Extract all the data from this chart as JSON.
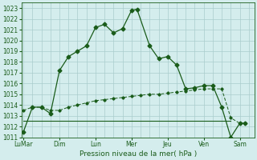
{
  "xlabel": "Pression niveau de la mer( hPa )",
  "ylim": [
    1011,
    1023.5
  ],
  "yticks": [
    1011,
    1012,
    1013,
    1014,
    1015,
    1016,
    1017,
    1018,
    1019,
    1020,
    1021,
    1022,
    1023
  ],
  "bg_color": "#d4eded",
  "grid_color": "#aacccc",
  "line_color": "#1a5c1a",
  "xtick_labels": [
    "LuMar",
    "Dim",
    "Lun",
    "Mer",
    "Jeu",
    "Ven",
    "Sam"
  ],
  "xtick_positions": [
    0,
    2,
    4,
    6,
    8,
    10,
    12
  ],
  "xlim": [
    -0.1,
    12.8
  ],
  "curve1_x": [
    0.0,
    0.5,
    1.0,
    1.5,
    2.0,
    2.5,
    3.0,
    3.5,
    4.0,
    4.5,
    5.0,
    5.5,
    6.0,
    6.3,
    7.0,
    7.5,
    8.0,
    8.5,
    9.0,
    9.5,
    10.0,
    10.5,
    11.0,
    11.5,
    12.0,
    12.3
  ],
  "curve1_y": [
    1011.5,
    1013.8,
    1013.8,
    1013.2,
    1017.2,
    1018.5,
    1019.0,
    1019.5,
    1021.2,
    1021.5,
    1020.7,
    1021.1,
    1022.8,
    1022.9,
    1019.5,
    1018.3,
    1018.5,
    1017.7,
    1015.5,
    1015.6,
    1015.8,
    1015.8,
    1013.8,
    1011.0,
    1012.3,
    1012.3
  ],
  "curve2_x": [
    0.0,
    0.5,
    1.0,
    1.5,
    2.0,
    2.5,
    3.0,
    3.5,
    4.0,
    4.5,
    5.0,
    5.5,
    6.0,
    6.5,
    7.0,
    7.5,
    8.0,
    8.5,
    9.0,
    9.5,
    10.0,
    10.5,
    11.0,
    11.5,
    12.0,
    12.3
  ],
  "curve2_y": [
    1013.5,
    1013.8,
    1013.8,
    1013.5,
    1013.5,
    1013.8,
    1014.0,
    1014.2,
    1014.4,
    1014.5,
    1014.6,
    1014.7,
    1014.8,
    1014.9,
    1015.0,
    1015.0,
    1015.1,
    1015.2,
    1015.3,
    1015.4,
    1015.5,
    1015.5,
    1015.5,
    1012.8,
    1012.3,
    1012.3
  ],
  "curve3_x": [
    0.0,
    11.5
  ],
  "curve3_y": [
    1012.5,
    1012.5
  ],
  "marker_size": 2.5
}
